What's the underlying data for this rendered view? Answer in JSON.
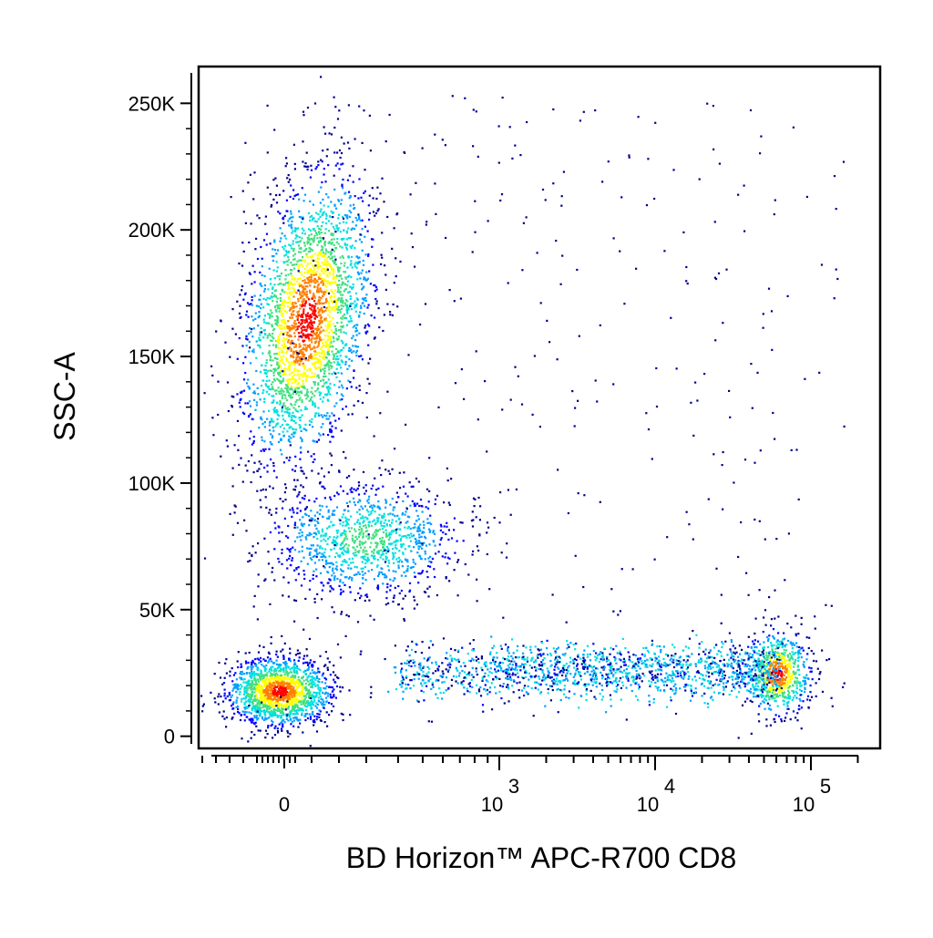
{
  "chart_data": {
    "type": "scatter",
    "subtype": "flow-cytometry-pseudocolor-density",
    "title": "",
    "xlabel": "BD Horizon™ APC-R700 CD8",
    "ylabel": "SSC-A",
    "x_scale": "biexponential (linear near 0, log10 above ~10^2.5)",
    "y_scale": "linear",
    "ylim": [
      -3000,
      262000
    ],
    "y_ticks": [
      {
        "value": 0,
        "label": "0"
      },
      {
        "value": 50000,
        "label": "50K"
      },
      {
        "value": 100000,
        "label": "100K"
      },
      {
        "value": 150000,
        "label": "150K"
      },
      {
        "value": 200000,
        "label": "200K"
      },
      {
        "value": 250000,
        "label": "250K"
      }
    ],
    "x_ticks": [
      {
        "value": 0,
        "label_base": "0",
        "label_exp": ""
      },
      {
        "value": 1000,
        "label_base": "10",
        "label_exp": "3"
      },
      {
        "value": 10000,
        "label_base": "10",
        "label_exp": "4"
      },
      {
        "value": 100000,
        "label_base": "10",
        "label_exp": "5"
      }
    ],
    "color_scale": [
      "#00008b",
      "#0000ff",
      "#00a0ff",
      "#00e0e0",
      "#40e080",
      "#ffff00",
      "#ff8000",
      "#ff0000"
    ],
    "populations": [
      {
        "name": "CD8- high SSC cluster",
        "x_center": 80,
        "y_center": 165000,
        "x_spread": 60,
        "y_spread": 30000,
        "relative_density": 0.34,
        "peak_color": "orange-red"
      },
      {
        "name": "CD8- intermediate SSC cluster",
        "x_center": 160,
        "y_center": 78000,
        "x_spread": 90,
        "y_spread": 14000,
        "relative_density": 0.12,
        "peak_color": "cyan-green"
      },
      {
        "name": "CD8- low SSC cluster",
        "x_center": -20,
        "y_center": 18000,
        "x_spread": 45,
        "y_spread": 7000,
        "relative_density": 0.26,
        "peak_color": "red"
      },
      {
        "name": "CD8 bridge (low SSC)",
        "x_center": 8000,
        "y_center": 26000,
        "x_spread": "broad",
        "y_spread": 6000,
        "relative_density": 0.1,
        "peak_color": "cyan"
      },
      {
        "name": "CD8+ low SSC cluster",
        "x_center": 60000,
        "y_center": 25000,
        "x_spread": 15000,
        "y_spread": 7000,
        "relative_density": 0.12,
        "peak_color": "orange-red"
      },
      {
        "name": "sparse background events",
        "x_center": "whole range",
        "y_center": "whole range",
        "relative_density": 0.02,
        "peak_color": "dark-blue"
      }
    ]
  }
}
